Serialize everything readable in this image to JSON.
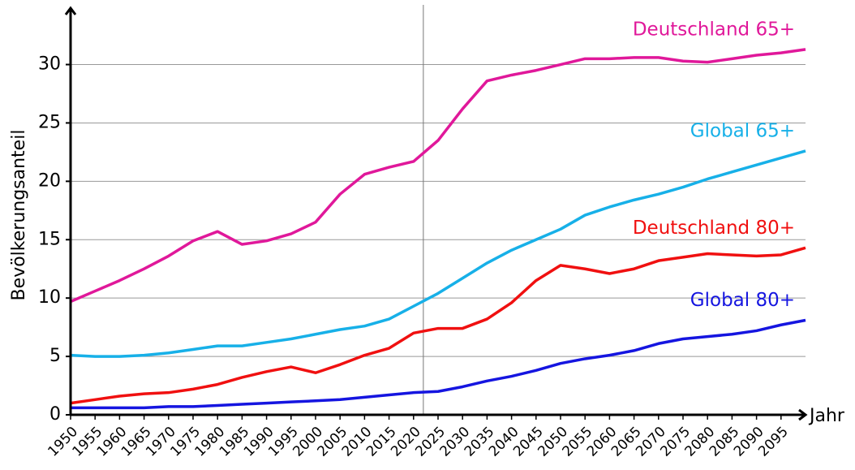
{
  "chart_data": {
    "type": "line",
    "ylabel": "Bevölkerungsanteil",
    "xlabel": "Jahr",
    "x": [
      1950,
      1955,
      1960,
      1965,
      1970,
      1975,
      1980,
      1985,
      1990,
      1995,
      2000,
      2005,
      2010,
      2015,
      2020,
      2025,
      2030,
      2035,
      2040,
      2045,
      2050,
      2055,
      2060,
      2065,
      2070,
      2075,
      2080,
      2085,
      2090,
      2095,
      2100
    ],
    "series": [
      {
        "name": "Deutschland 65+",
        "color": "#e0189a",
        "values": [
          9.7,
          10.6,
          11.5,
          12.5,
          13.6,
          14.9,
          15.7,
          14.6,
          14.9,
          15.5,
          16.5,
          18.9,
          20.6,
          21.2,
          21.7,
          23.5,
          26.2,
          28.6,
          29.1,
          29.5,
          30.0,
          30.5,
          30.5,
          30.6,
          30.6,
          30.3,
          30.2,
          30.5,
          30.8,
          31.0,
          31.3
        ]
      },
      {
        "name": "Global 65+",
        "color": "#17b0e8",
        "values": [
          5.1,
          5.0,
          5.0,
          5.1,
          5.3,
          5.6,
          5.9,
          5.9,
          6.2,
          6.5,
          6.9,
          7.3,
          7.6,
          8.2,
          9.3,
          10.4,
          11.7,
          13.0,
          14.1,
          15.0,
          15.9,
          17.1,
          17.8,
          18.4,
          18.9,
          19.5,
          20.2,
          20.8,
          21.4,
          22.0,
          22.6
        ]
      },
      {
        "name": "Deutschland 80+",
        "color": "#f01010",
        "values": [
          1.0,
          1.3,
          1.6,
          1.8,
          1.9,
          2.2,
          2.6,
          3.2,
          3.7,
          4.1,
          3.6,
          4.3,
          5.1,
          5.7,
          7.0,
          7.4,
          7.4,
          8.2,
          9.6,
          11.5,
          12.8,
          12.5,
          12.1,
          12.5,
          13.2,
          13.5,
          13.8,
          13.7,
          13.6,
          13.7,
          14.3
        ]
      },
      {
        "name": "Global 80+",
        "color": "#1515e0",
        "values": [
          0.6,
          0.6,
          0.6,
          0.6,
          0.7,
          0.7,
          0.8,
          0.9,
          1.0,
          1.1,
          1.2,
          1.3,
          1.5,
          1.7,
          1.9,
          2.0,
          2.4,
          2.9,
          3.3,
          3.8,
          4.4,
          4.8,
          5.1,
          5.5,
          6.1,
          6.5,
          6.7,
          6.9,
          7.2,
          7.7,
          8.1
        ]
      }
    ],
    "xlim": [
      1950,
      2100
    ],
    "ylim": [
      0,
      34
    ],
    "xticks": [
      1950,
      1955,
      1960,
      1965,
      1970,
      1975,
      1980,
      1985,
      1990,
      1995,
      2000,
      2005,
      2010,
      2015,
      2020,
      2025,
      2030,
      2035,
      2040,
      2045,
      2050,
      2055,
      2060,
      2065,
      2070,
      2075,
      2080,
      2085,
      2090,
      2095
    ],
    "yticks": [
      0,
      5,
      10,
      15,
      20,
      25,
      30
    ],
    "vline": 2022,
    "grid": true
  }
}
